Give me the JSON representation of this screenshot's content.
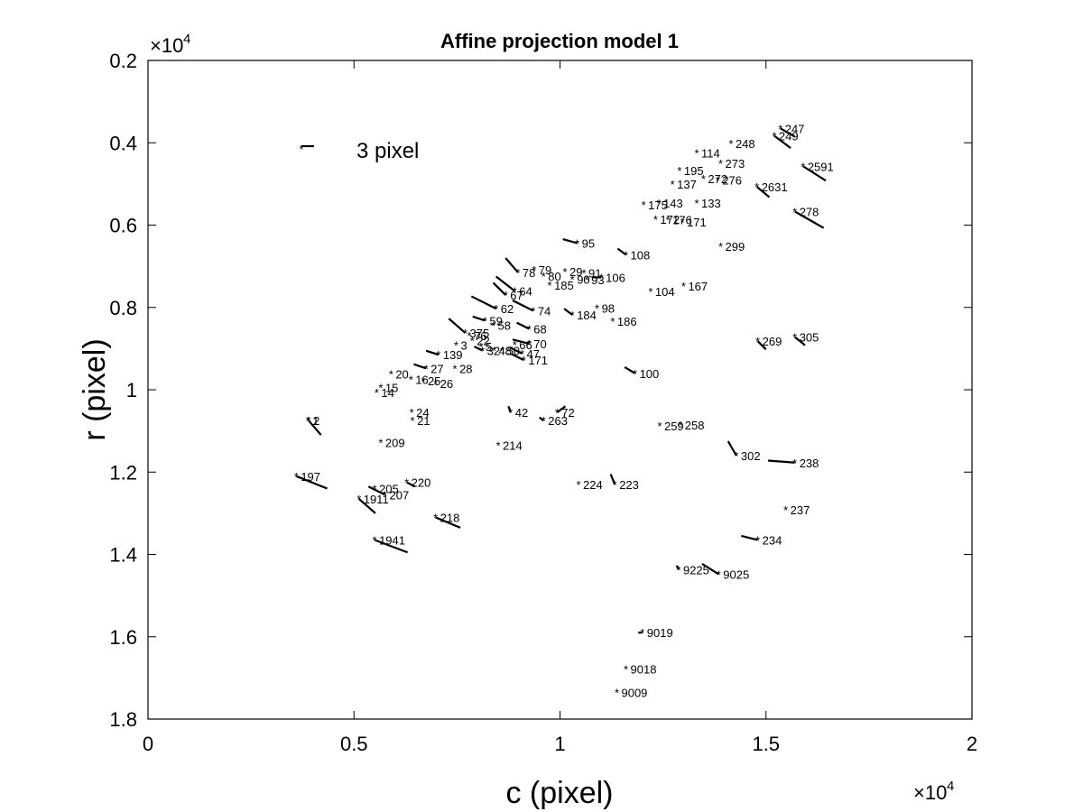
{
  "chart_data": {
    "type": "scatter",
    "title": "Affine projection model 1",
    "xlabel": "c (pixel)",
    "ylabel": "r (pixel)",
    "x_multiplier": "×10",
    "x_exponent": "4",
    "y_multiplier": "×10",
    "y_exponent": "4",
    "xlim": [
      0,
      2
    ],
    "ylim": [
      0.2,
      1.8
    ],
    "y_reversed": true,
    "x_ticks": [
      "0",
      "0.5",
      "1",
      "1.5",
      "2"
    ],
    "y_ticks": [
      "0.2",
      "0.4",
      "0.6",
      "0.8",
      "1",
      "1.2",
      "1.4",
      "1.6",
      "1.8"
    ],
    "legend": {
      "label": "3 pixel",
      "position": "top-left"
    },
    "marker": "*",
    "color": "#000000",
    "points": [
      {
        "label": "247",
        "c": 1.535,
        "r": 0.365,
        "dc": 0.035,
        "dr": 0.02
      },
      {
        "label": "248",
        "c": 1.415,
        "r": 0.402,
        "dc": 0.0,
        "dr": 0.0
      },
      {
        "label": "249",
        "c": 1.52,
        "r": 0.383,
        "dc": 0.04,
        "dr": 0.03
      },
      {
        "label": "114",
        "c": 1.332,
        "r": 0.425,
        "dc": 0.0,
        "dr": 0.0
      },
      {
        "label": "273",
        "c": 1.39,
        "r": 0.45,
        "dc": 0.0,
        "dr": 0.0
      },
      {
        "label": "2591",
        "c": 1.59,
        "r": 0.457,
        "dc": 0.055,
        "dr": 0.035
      },
      {
        "label": "195",
        "c": 1.29,
        "r": 0.467,
        "dc": 0.0,
        "dr": 0.0
      },
      {
        "label": "272",
        "c": 1.348,
        "r": 0.487,
        "dc": 0.0,
        "dr": 0.0
      },
      {
        "label": "276",
        "c": 1.383,
        "r": 0.49,
        "dc": 0.0,
        "dr": 0.0
      },
      {
        "label": "137",
        "c": 1.273,
        "r": 0.5,
        "dc": 0.0,
        "dr": 0.0
      },
      {
        "label": "2631",
        "c": 1.478,
        "r": 0.507,
        "dc": 0.03,
        "dr": 0.025
      },
      {
        "label": "143",
        "c": 1.24,
        "r": 0.546,
        "dc": 0.0,
        "dr": 0.0
      },
      {
        "label": "133",
        "c": 1.332,
        "r": 0.546,
        "dc": 0.0,
        "dr": 0.0
      },
      {
        "label": "175",
        "c": 1.203,
        "r": 0.551,
        "dc": 0.0,
        "dr": 0.0
      },
      {
        "label": "278",
        "c": 1.57,
        "r": 0.567,
        "dc": 0.07,
        "dr": 0.04
      },
      {
        "label": "172",
        "c": 1.232,
        "r": 0.586,
        "dc": 0.0,
        "dr": 0.0
      },
      {
        "label": "176",
        "c": 1.262,
        "r": 0.587,
        "dc": 0.0,
        "dr": 0.0
      },
      {
        "label": "171",
        "c": 1.297,
        "r": 0.592,
        "dc": 0.0,
        "dr": 0.0
      },
      {
        "label": "95",
        "c": 1.042,
        "r": 0.644,
        "dc": -0.035,
        "dr": -0.01
      },
      {
        "label": "299",
        "c": 1.39,
        "r": 0.652,
        "dc": 0.0,
        "dr": 0.0
      },
      {
        "label": "108",
        "c": 1.16,
        "r": 0.672,
        "dc": -0.02,
        "dr": -0.015
      },
      {
        "label": "79",
        "c": 0.937,
        "r": 0.708,
        "dc": 0.0,
        "dr": 0.0
      },
      {
        "label": "29",
        "c": 1.012,
        "r": 0.713,
        "dc": 0.0,
        "dr": 0.0
      },
      {
        "label": "91",
        "c": 1.058,
        "r": 0.716,
        "dc": 0.0,
        "dr": 0.0
      },
      {
        "label": "78",
        "c": 0.898,
        "r": 0.715,
        "dc": -0.03,
        "dr": -0.035
      },
      {
        "label": "80",
        "c": 0.96,
        "r": 0.724,
        "dc": 0.0,
        "dr": 0.0
      },
      {
        "label": "106",
        "c": 1.1,
        "r": 0.727,
        "dc": -0.02,
        "dr": 0.0
      },
      {
        "label": "90",
        "c": 1.03,
        "r": 0.731,
        "dc": 0.0,
        "dr": 0.0
      },
      {
        "label": "93",
        "c": 1.065,
        "r": 0.733,
        "dc": 0.0,
        "dr": 0.0
      },
      {
        "label": "185",
        "c": 0.975,
        "r": 0.746,
        "dc": 0.0,
        "dr": 0.0
      },
      {
        "label": "167",
        "c": 1.3,
        "r": 0.748,
        "dc": 0.0,
        "dr": 0.0
      },
      {
        "label": "104",
        "c": 1.22,
        "r": 0.761,
        "dc": 0.0,
        "dr": 0.0
      },
      {
        "label": "64",
        "c": 0.89,
        "r": 0.76,
        "dc": -0.045,
        "dr": -0.035
      },
      {
        "label": "67",
        "c": 0.868,
        "r": 0.77,
        "dc": -0.03,
        "dr": -0.03
      },
      {
        "label": "98",
        "c": 1.09,
        "r": 0.802,
        "dc": 0.0,
        "dr": 0.0
      },
      {
        "label": "62",
        "c": 0.845,
        "r": 0.803,
        "dc": -0.06,
        "dr": -0.03
      },
      {
        "label": "74",
        "c": 0.935,
        "r": 0.808,
        "dc": -0.05,
        "dr": -0.025
      },
      {
        "label": "184",
        "c": 1.03,
        "r": 0.818,
        "dc": -0.02,
        "dr": -0.015
      },
      {
        "label": "186",
        "c": 1.128,
        "r": 0.833,
        "dc": 0.0,
        "dr": 0.0
      },
      {
        "label": "59",
        "c": 0.818,
        "r": 0.832,
        "dc": -0.03,
        "dr": -0.01
      },
      {
        "label": "58",
        "c": 0.838,
        "r": 0.843,
        "dc": 0.0,
        "dr": 0.0
      },
      {
        "label": "68",
        "c": 0.925,
        "r": 0.852,
        "dc": -0.03,
        "dr": -0.015
      },
      {
        "label": "375",
        "c": 0.77,
        "r": 0.862,
        "dc": -0.04,
        "dr": -0.035
      },
      {
        "label": "76",
        "c": 0.78,
        "r": 0.868,
        "dc": 0.0,
        "dr": 0.0
      },
      {
        "label": "22",
        "c": 0.787,
        "r": 0.88,
        "dc": 0.0,
        "dr": 0.0
      },
      {
        "label": "269",
        "c": 1.48,
        "r": 0.882,
        "dc": 0.02,
        "dr": 0.02
      },
      {
        "label": "305",
        "c": 1.57,
        "r": 0.872,
        "dc": 0.025,
        "dr": 0.02
      },
      {
        "label": "66",
        "c": 0.89,
        "r": 0.89,
        "dc": 0.0,
        "dr": 0.0
      },
      {
        "label": "70",
        "c": 0.925,
        "r": 0.888,
        "dc": -0.04,
        "dr": -0.01
      },
      {
        "label": "3",
        "c": 0.748,
        "r": 0.892,
        "dc": 0.0,
        "dr": 0.0
      },
      {
        "label": "5",
        "c": 0.808,
        "r": 0.895,
        "dc": 0.0,
        "dr": 0.0
      },
      {
        "label": "32",
        "c": 0.812,
        "r": 0.905,
        "dc": -0.02,
        "dr": -0.01
      },
      {
        "label": "48",
        "c": 0.84,
        "r": 0.905,
        "dc": 0.0,
        "dr": 0.0
      },
      {
        "label": "50",
        "c": 0.86,
        "r": 0.905,
        "dc": 0.0,
        "dr": 0.0
      },
      {
        "label": "47",
        "c": 0.908,
        "r": 0.912,
        "dc": -0.03,
        "dr": -0.015
      },
      {
        "label": "139",
        "c": 0.705,
        "r": 0.915,
        "dc": -0.03,
        "dr": -0.01
      },
      {
        "label": "171",
        "c": 0.912,
        "r": 0.928,
        "dc": -0.03,
        "dr": -0.015
      },
      {
        "label": "27",
        "c": 0.675,
        "r": 0.948,
        "dc": -0.03,
        "dr": -0.01
      },
      {
        "label": "28",
        "c": 0.745,
        "r": 0.948,
        "dc": 0.0,
        "dr": 0.0
      },
      {
        "label": "100",
        "c": 1.182,
        "r": 0.96,
        "dc": -0.025,
        "dr": -0.015
      },
      {
        "label": "20",
        "c": 0.59,
        "r": 0.962,
        "dc": 0.0,
        "dr": 0.0
      },
      {
        "label": "16",
        "c": 0.638,
        "r": 0.975,
        "dc": 0.0,
        "dr": 0.0
      },
      {
        "label": "25",
        "c": 0.668,
        "r": 0.978,
        "dc": 0.0,
        "dr": 0.0
      },
      {
        "label": "26",
        "c": 0.698,
        "r": 0.985,
        "dc": 0.0,
        "dr": 0.0
      },
      {
        "label": "15",
        "c": 0.565,
        "r": 0.995,
        "dc": 0.0,
        "dr": 0.0
      },
      {
        "label": "14",
        "c": 0.555,
        "r": 1.007,
        "dc": 0.0,
        "dr": 0.0
      },
      {
        "label": "42",
        "c": 0.88,
        "r": 1.055,
        "dc": -0.005,
        "dr": -0.015
      },
      {
        "label": "72",
        "c": 0.993,
        "r": 1.055,
        "dc": 0.02,
        "dr": -0.015
      },
      {
        "label": "24",
        "c": 0.64,
        "r": 1.055,
        "dc": 0.0,
        "dr": 0.0
      },
      {
        "label": "263",
        "c": 0.96,
        "r": 1.075,
        "dc": -0.01,
        "dr": -0.008
      },
      {
        "label": "21",
        "c": 0.642,
        "r": 1.075,
        "dc": 0.0,
        "dr": 0.0
      },
      {
        "label": "1",
        "c": 0.388,
        "r": 1.075,
        "dc": 0.0,
        "dr": 0.0
      },
      {
        "label": "2",
        "c": 0.39,
        "r": 1.075,
        "dc": 0.03,
        "dr": 0.035
      },
      {
        "label": "258",
        "c": 1.292,
        "r": 1.085,
        "dc": 0.0,
        "dr": 0.0
      },
      {
        "label": "259",
        "c": 1.242,
        "r": 1.088,
        "dc": 0.0,
        "dr": 0.0
      },
      {
        "label": "209",
        "c": 0.565,
        "r": 1.128,
        "dc": 0.0,
        "dr": 0.0
      },
      {
        "label": "214",
        "c": 0.85,
        "r": 1.135,
        "dc": 0.0,
        "dr": 0.0
      },
      {
        "label": "302",
        "c": 1.428,
        "r": 1.16,
        "dc": -0.02,
        "dr": -0.035
      },
      {
        "label": "238",
        "c": 1.57,
        "r": 1.177,
        "dc": -0.065,
        "dr": -0.005
      },
      {
        "label": "197",
        "c": 0.36,
        "r": 1.21,
        "dc": 0.075,
        "dr": 0.03
      },
      {
        "label": "220",
        "c": 0.628,
        "r": 1.225,
        "dc": 0.02,
        "dr": 0.01
      },
      {
        "label": "224",
        "c": 1.045,
        "r": 1.23,
        "dc": 0.0,
        "dr": 0.0
      },
      {
        "label": "223",
        "c": 1.133,
        "r": 1.23,
        "dc": -0.01,
        "dr": -0.025
      },
      {
        "label": "205",
        "c": 0.55,
        "r": 1.24,
        "dc": 0.0,
        "dr": 0.0
      },
      {
        "label": "207",
        "c": 0.575,
        "r": 1.255,
        "dc": -0.04,
        "dr": -0.02
      },
      {
        "label": "1911",
        "c": 0.512,
        "r": 1.265,
        "dc": 0.04,
        "dr": 0.035
      },
      {
        "label": "237",
        "c": 1.548,
        "r": 1.292,
        "dc": 0.0,
        "dr": 0.0
      },
      {
        "label": "218",
        "c": 0.698,
        "r": 1.31,
        "dc": 0.06,
        "dr": 0.025
      },
      {
        "label": "234",
        "c": 1.48,
        "r": 1.365,
        "dc": -0.04,
        "dr": -0.01
      },
      {
        "label": "1941",
        "c": 0.55,
        "r": 1.365,
        "dc": 0.08,
        "dr": 0.03
      },
      {
        "label": "9225",
        "c": 1.288,
        "r": 1.437,
        "dc": -0.005,
        "dr": -0.01
      },
      {
        "label": "9025",
        "c": 1.385,
        "r": 1.448,
        "dc": -0.04,
        "dr": -0.025
      },
      {
        "label": "9019",
        "c": 1.2,
        "r": 1.59,
        "dc": -0.01,
        "dr": 0.0
      },
      {
        "label": "9018",
        "c": 1.16,
        "r": 1.678,
        "dc": 0.0,
        "dr": 0.0
      },
      {
        "label": "9009",
        "c": 1.138,
        "r": 1.735,
        "dc": 0.0,
        "dr": 0.0
      }
    ]
  }
}
